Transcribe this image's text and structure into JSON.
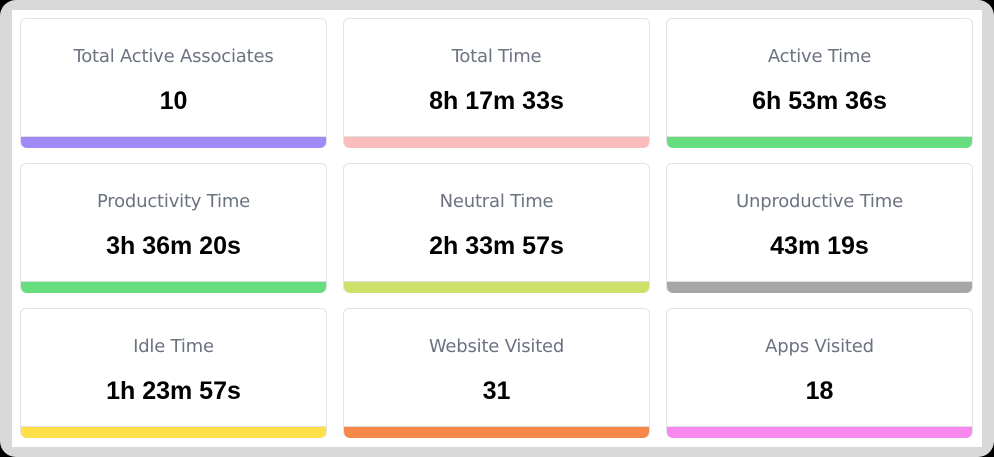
{
  "dashboard": {
    "cards": [
      {
        "label": "Total Active Associates",
        "value": "10",
        "color": "#a08af7"
      },
      {
        "label": "Total Time",
        "value": "8h 17m 33s",
        "color": "#fbbcbc"
      },
      {
        "label": "Active Time",
        "value": "6h 53m 36s",
        "color": "#66dd7f"
      },
      {
        "label": "Productivity Time",
        "value": "3h 36m 20s",
        "color": "#66dd7f"
      },
      {
        "label": "Neutral Time",
        "value": "2h 33m 57s",
        "color": "#cde06a"
      },
      {
        "label": "Unproductive Time",
        "value": "43m 19s",
        "color": "#a6a6a6"
      },
      {
        "label": "Idle Time",
        "value": "1h 23m 57s",
        "color": "#fde047"
      },
      {
        "label": "Website Visited",
        "value": "31",
        "color": "#f8884a"
      },
      {
        "label": "Apps Visited",
        "value": "18",
        "color": "#f688f0"
      }
    ]
  }
}
